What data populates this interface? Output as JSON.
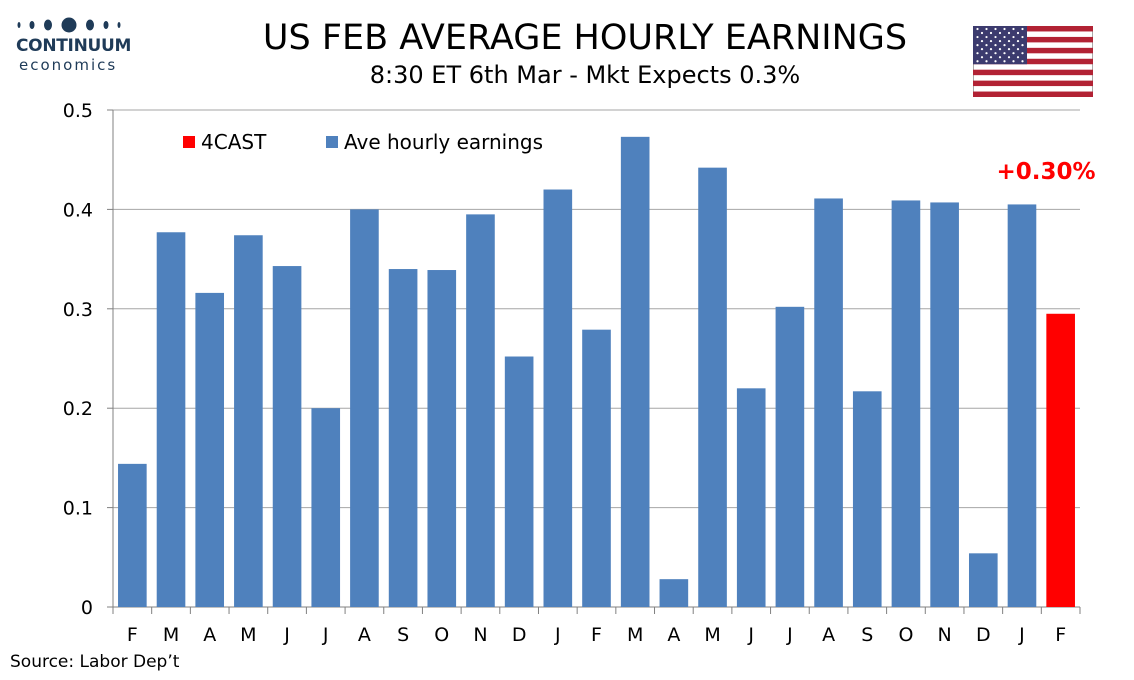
{
  "logo": {
    "brand": "CONTINUUM",
    "sub": "economics"
  },
  "header": {
    "title": "US FEB AVERAGE HOURLY EARNINGS",
    "subtitle": "8:30 ET 6th Mar - Mkt Expects 0.3%"
  },
  "flag": {
    "name": "us-flag-icon"
  },
  "source": "Source: Labor Dep’t",
  "colors": {
    "bar": "#4f81bd",
    "forecast": "#ff0000",
    "grid": "#a6a6a6"
  },
  "chart_data": {
    "type": "bar",
    "title": "US FEB AVERAGE HOURLY EARNINGS",
    "subtitle": "8:30 ET 6th Mar - Mkt Expects 0.3%",
    "xlabel": "",
    "ylabel": "",
    "ylim": [
      0,
      0.5
    ],
    "yticks": [
      "0",
      "0.1",
      "0.2",
      "0.3",
      "0.4",
      "0.5"
    ],
    "grid": true,
    "legend_position": "top-left",
    "categories": [
      "F",
      "M",
      "A",
      "M",
      "J",
      "J",
      "A",
      "S",
      "O",
      "N",
      "D",
      "J",
      "F",
      "M",
      "A",
      "M",
      "J",
      "J",
      "A",
      "S",
      "O",
      "N",
      "D",
      "J",
      "F"
    ],
    "series": [
      {
        "name": "Ave hourly earnings",
        "color": "#4f81bd",
        "values": [
          0.144,
          0.377,
          0.316,
          0.374,
          0.343,
          0.2,
          0.4,
          0.34,
          0.339,
          0.395,
          0.252,
          0.42,
          0.279,
          0.473,
          0.028,
          0.442,
          0.22,
          0.302,
          0.411,
          0.217,
          0.409,
          0.407,
          0.054,
          0.405,
          null
        ]
      },
      {
        "name": "4CAST",
        "color": "#ff0000",
        "values": [
          null,
          null,
          null,
          null,
          null,
          null,
          null,
          null,
          null,
          null,
          null,
          null,
          null,
          null,
          null,
          null,
          null,
          null,
          null,
          null,
          null,
          null,
          null,
          null,
          0.295
        ]
      }
    ],
    "legend": [
      "4CAST",
      "Ave hourly earnings"
    ],
    "annotation": "+0.30%"
  }
}
